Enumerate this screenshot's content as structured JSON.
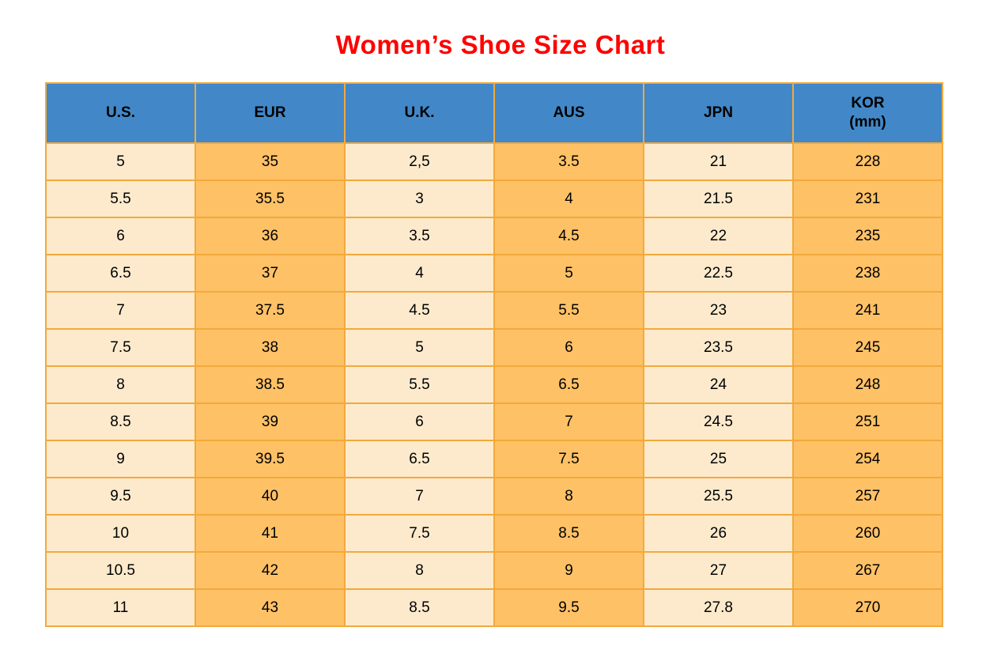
{
  "page": {
    "title": "Women’s Shoe Size Chart"
  },
  "colors": {
    "title_red": "#FF0000",
    "header_blue": "#4288C8",
    "cell_cream": "#FDEACC",
    "cell_orange": "#FEC166",
    "border_gold": "#F2A93C",
    "text_black": "#000000"
  },
  "table": {
    "headers": [
      "U.S.",
      "EUR",
      "U.K.",
      "AUS",
      "JPN"
    ],
    "kor_header": {
      "line1": "KOR",
      "line2": "(mm)"
    }
  },
  "chart_data": {
    "type": "table",
    "title": "Women’s Shoe Size Chart",
    "columns": [
      "U.S.",
      "EUR",
      "U.K.",
      "AUS",
      "JPN",
      "KOR (mm)"
    ],
    "rows": [
      [
        "5",
        "35",
        "2,5",
        "3.5",
        "21",
        "228"
      ],
      [
        "5.5",
        "35.5",
        "3",
        "4",
        "21.5",
        "231"
      ],
      [
        "6",
        "36",
        "3.5",
        "4.5",
        "22",
        "235"
      ],
      [
        "6.5",
        "37",
        "4",
        "5",
        "22.5",
        "238"
      ],
      [
        "7",
        "37.5",
        "4.5",
        "5.5",
        "23",
        "241"
      ],
      [
        "7.5",
        "38",
        "5",
        "6",
        "23.5",
        "245"
      ],
      [
        "8",
        "38.5",
        "5.5",
        "6.5",
        "24",
        "248"
      ],
      [
        "8.5",
        "39",
        "6",
        "7",
        "24.5",
        "251"
      ],
      [
        "9",
        "39.5",
        "6.5",
        "7.5",
        "25",
        "254"
      ],
      [
        "9.5",
        "40",
        "7",
        "8",
        "25.5",
        "257"
      ],
      [
        "10",
        "41",
        "7.5",
        "8.5",
        "26",
        "260"
      ],
      [
        "10.5",
        "42",
        "8",
        "9",
        "27",
        "267"
      ],
      [
        "11",
        "43",
        "8.5",
        "9.5",
        "27.8",
        "270"
      ]
    ],
    "layout": {
      "header_background": "#4288C8",
      "odd_column_background": "#FDEACC",
      "even_column_background": "#FEC166",
      "border_color": "#F2A93C",
      "title_color": "#FF0000",
      "grid": true
    }
  }
}
